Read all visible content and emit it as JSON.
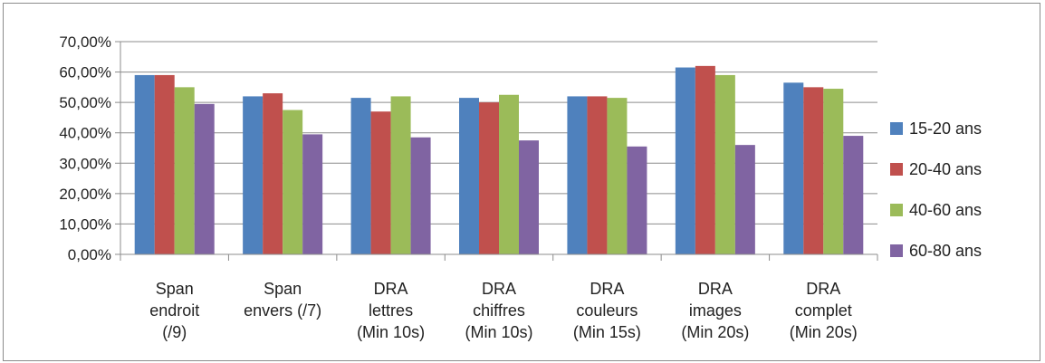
{
  "chart_data": {
    "type": "bar",
    "categories": [
      [
        "Span",
        "endroit",
        "(/9)"
      ],
      [
        "Span",
        "envers (/7)"
      ],
      [
        "DRA",
        "lettres",
        "(Min 10s)"
      ],
      [
        "DRA",
        "chiffres",
        "(Min 10s)"
      ],
      [
        "DRA",
        "couleurs",
        "(Min 15s)"
      ],
      [
        "DRA",
        "images",
        "(Min 20s)"
      ],
      [
        "DRA",
        "complet",
        "(Min 20s)"
      ]
    ],
    "series": [
      {
        "name": "15-20 ans",
        "color": "#4f81bd",
        "values": [
          59,
          52,
          51.5,
          51.5,
          52,
          61.5,
          56.5
        ]
      },
      {
        "name": "20-40 ans",
        "color": "#c0504d",
        "values": [
          59,
          53,
          47,
          50,
          52,
          62,
          55
        ]
      },
      {
        "name": "40-60 ans",
        "color": "#9bbb59",
        "values": [
          55,
          47.5,
          52,
          52.5,
          51.5,
          59,
          54.5
        ]
      },
      {
        "name": "60-80 ans",
        "color": "#8064a2",
        "values": [
          49.5,
          39.5,
          38.5,
          37.5,
          35.5,
          36,
          39
        ]
      }
    ],
    "yticks": [
      "0,00%",
      "10,00%",
      "20,00%",
      "30,00%",
      "40,00%",
      "50,00%",
      "60,00%",
      "70,00%"
    ],
    "ylim": [
      0,
      70
    ],
    "grid": true,
    "legend": "right"
  }
}
